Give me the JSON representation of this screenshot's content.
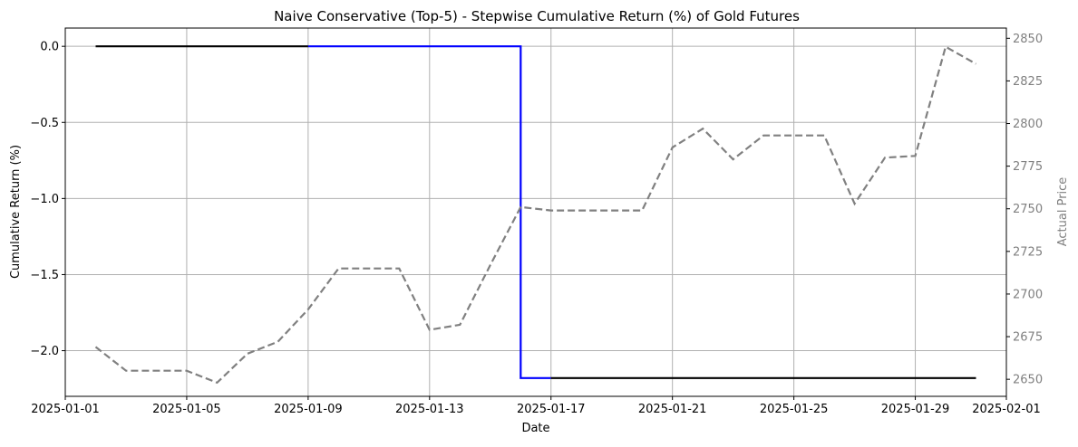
{
  "chart_data": {
    "type": "line",
    "title": "Naive Conservative (Top-5) - Stepwise Cumulative Return (%) of Gold Futures",
    "xlabel": "Date",
    "ylabel": "Cumulative Return (%)",
    "y2label": "Actual Price",
    "grid": true,
    "xlim": [
      "2025-01-01",
      "2025-02-01"
    ],
    "xticks": [
      "2025-01-01",
      "2025-01-05",
      "2025-01-09",
      "2025-01-13",
      "2025-01-17",
      "2025-01-21",
      "2025-01-25",
      "2025-01-29",
      "2025-02-01"
    ],
    "ylim": [
      -2.3,
      0.12
    ],
    "yticks": [
      0.0,
      -0.5,
      -1.0,
      -1.5,
      -2.0
    ],
    "y2lim": [
      2640,
      2856
    ],
    "y2ticks": [
      2650,
      2675,
      2700,
      2725,
      2750,
      2775,
      2800,
      2825,
      2850
    ],
    "series": [
      {
        "axis": "left",
        "color": "#000000",
        "style": "solid",
        "step": true,
        "x": [
          "2025-01-02",
          "2025-01-09"
        ],
        "values": [
          0.0,
          0.0
        ]
      },
      {
        "axis": "left",
        "color": "#0000ff",
        "style": "solid",
        "step": true,
        "x": [
          "2025-01-09",
          "2025-01-16",
          "2025-01-16",
          "2025-01-17"
        ],
        "values": [
          0.0,
          0.0,
          -2.18,
          -2.18
        ]
      },
      {
        "axis": "left",
        "color": "#000000",
        "style": "solid",
        "step": true,
        "x": [
          "2025-01-17",
          "2025-01-31"
        ],
        "values": [
          -2.18,
          -2.18
        ]
      },
      {
        "axis": "right",
        "color": "#808080",
        "style": "dashed",
        "step": false,
        "x": [
          "2025-01-02",
          "2025-01-03",
          "2025-01-04",
          "2025-01-05",
          "2025-01-06",
          "2025-01-07",
          "2025-01-08",
          "2025-01-09",
          "2025-01-10",
          "2025-01-11",
          "2025-01-12",
          "2025-01-13",
          "2025-01-14",
          "2025-01-15",
          "2025-01-16",
          "2025-01-17",
          "2025-01-18",
          "2025-01-19",
          "2025-01-20",
          "2025-01-21",
          "2025-01-22",
          "2025-01-23",
          "2025-01-24",
          "2025-01-25",
          "2025-01-26",
          "2025-01-27",
          "2025-01-28",
          "2025-01-29",
          "2025-01-30",
          "2025-01-31"
        ],
        "values": [
          2669,
          2655,
          2655,
          2655,
          2648,
          2665,
          2672,
          2691,
          2715,
          2715,
          2715,
          2679,
          2682,
          2717,
          2751,
          2749,
          2749,
          2749,
          2749,
          2786,
          2797,
          2779,
          2793,
          2793,
          2793,
          2753,
          2780,
          2781,
          2845,
          2835
        ]
      }
    ],
    "colors": {
      "axis_right_text": "#808080",
      "grid": "#b0b0b0"
    }
  }
}
